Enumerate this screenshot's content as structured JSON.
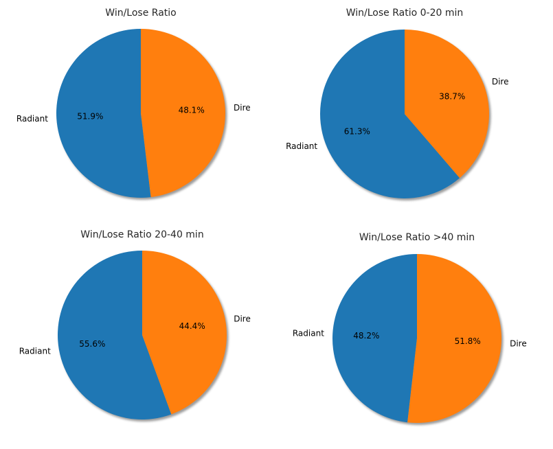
{
  "colors": {
    "radiant": "#1f77b4",
    "dire": "#ff7f0e",
    "shadow": "#7a7a7a"
  },
  "chart_data": [
    {
      "type": "pie",
      "title": "Win/Lose Ratio",
      "slices": [
        {
          "label": "Radiant",
          "value": 51.9,
          "pct_label": "51.9%"
        },
        {
          "label": "Dire",
          "value": 48.1,
          "pct_label": "48.1%"
        }
      ]
    },
    {
      "type": "pie",
      "title": "Win/Lose Ratio 0-20 min",
      "slices": [
        {
          "label": "Radiant",
          "value": 61.3,
          "pct_label": "61.3%"
        },
        {
          "label": "Dire",
          "value": 38.7,
          "pct_label": "38.7%"
        }
      ]
    },
    {
      "type": "pie",
      "title": "Win/Lose Ratio 20-40 min",
      "slices": [
        {
          "label": "Radiant",
          "value": 55.6,
          "pct_label": "55.6%"
        },
        {
          "label": "Dire",
          "value": 44.4,
          "pct_label": "44.4%"
        }
      ]
    },
    {
      "type": "pie",
      "title": "Win/Lose Ratio >40 min",
      "slices": [
        {
          "label": "Radiant",
          "value": 48.2,
          "pct_label": "48.2%"
        },
        {
          "label": "Dire",
          "value": 51.8,
          "pct_label": "51.8%"
        }
      ]
    }
  ]
}
